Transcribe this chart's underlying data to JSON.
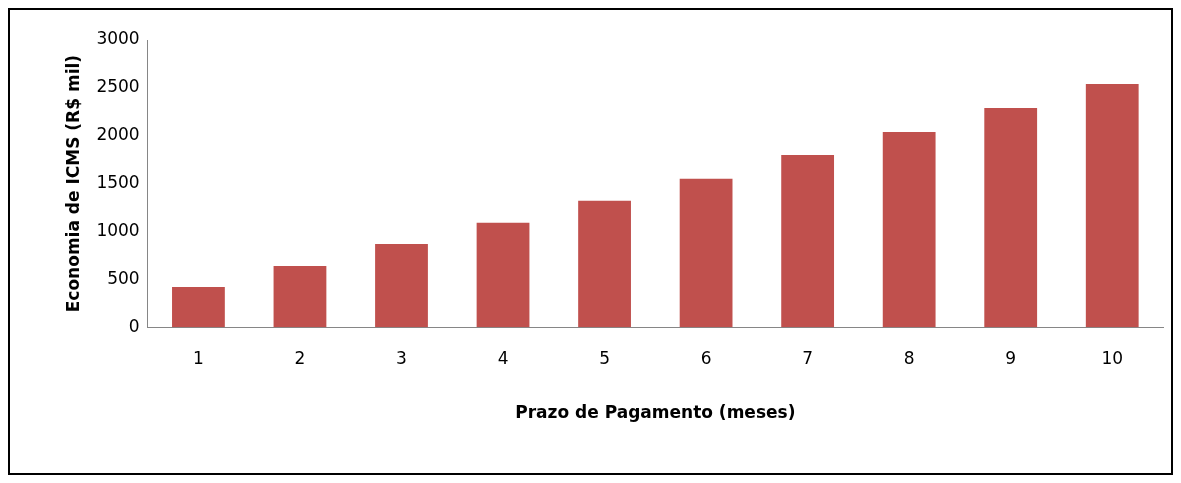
{
  "chart_data": {
    "type": "bar",
    "xlabel": "Prazo de Pagamento (meses)",
    "ylabel": "Economia de ICMS (R$ mil)",
    "categories": [
      "1",
      "2",
      "3",
      "4",
      "5",
      "6",
      "7",
      "8",
      "9",
      "10"
    ],
    "values": [
      420,
      640,
      870,
      1090,
      1320,
      1550,
      1800,
      2040,
      2290,
      2540
    ],
    "color": "#c0504d",
    "ylim": [
      0,
      3000
    ],
    "yticks": [
      0,
      500,
      1000,
      1500,
      2000,
      2500,
      3000
    ],
    "grid": false,
    "legend": false
  }
}
